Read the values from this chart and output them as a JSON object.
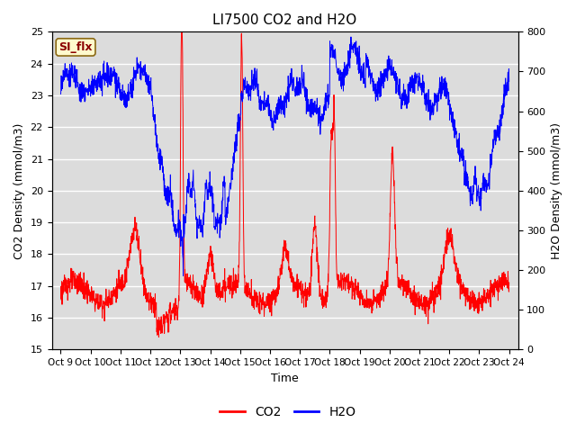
{
  "title": "LI7500 CO2 and H2O",
  "xlabel": "Time",
  "ylabel_left": "CO2 Density (mmol/m3)",
  "ylabel_right": "H2O Density (mmol/m3)",
  "ylim_left": [
    15.0,
    25.0
  ],
  "ylim_right": [
    0,
    800
  ],
  "yticks_left": [
    15.0,
    16.0,
    17.0,
    18.0,
    19.0,
    20.0,
    21.0,
    22.0,
    23.0,
    24.0,
    25.0
  ],
  "yticks_right": [
    0,
    100,
    200,
    300,
    400,
    500,
    600,
    700,
    800
  ],
  "xtick_labels": [
    "Oct 9",
    "Oct 10",
    "Oct 11",
    "Oct 12",
    "Oct 13",
    "Oct 14",
    "Oct 15",
    "Oct 16",
    "Oct 17",
    "Oct 18",
    "Oct 19",
    "Oct 20",
    "Oct 21",
    "Oct 22",
    "Oct 23",
    "Oct 24"
  ],
  "annotation_text": "SI_flx",
  "annotation_color": "#8B0000",
  "annotation_bg": "#FFFACD",
  "annotation_edge": "#8B6914",
  "co2_color": "red",
  "h2o_color": "blue",
  "bg_color": "#DCDCDC",
  "grid_color": "white",
  "legend_entries": [
    "CO2",
    "H2O"
  ],
  "title_fontsize": 11,
  "label_fontsize": 9,
  "tick_fontsize": 8
}
